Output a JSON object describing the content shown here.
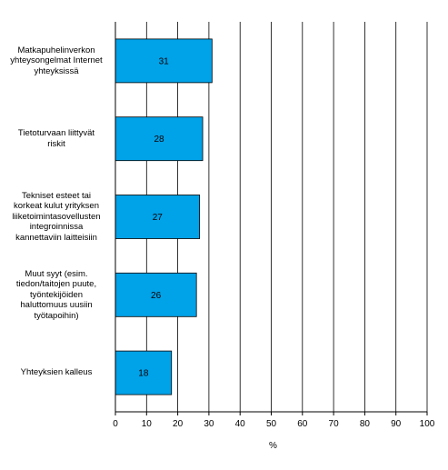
{
  "chart_data": {
    "type": "bar",
    "orientation": "horizontal",
    "categories": [
      "Matkapuhelinverkon yhteysongelmat Internet yhteyksissä",
      "Tietoturvaan liittyvät riskit",
      "Tekniset esteet tai korkeat kulut yrityksen liiketoimintasovellusten integroinnissa kannettaviin laitteisiin",
      "Muut syyt (esim. tiedon/taitojen puute, työntekijöiden haluttomuus uusiin työtapoihin)",
      "Yhteyksien kalleus"
    ],
    "category_lines": [
      [
        "Matkapuhelinverkon",
        "yhteysongelmat Internet",
        "yhteyksissä"
      ],
      [
        "Tietoturvaan liittyvät",
        "riskit"
      ],
      [
        "Tekniset esteet tai",
        "korkeat kulut yrityksen",
        "liiketoimintasovellusten",
        "integroinnissa",
        "kannettaviin laitteisiin"
      ],
      [
        "Muut syyt (esim.",
        "tiedon/taitojen puute,",
        "työntekijöiden",
        "haluttomuus uusiin",
        "työtapoihin)"
      ],
      [
        "Yhteyksien kalleus"
      ]
    ],
    "values": [
      31,
      28,
      27,
      26,
      18
    ],
    "data_labels": [
      "31",
      "28",
      "27",
      "26",
      "18"
    ],
    "xlim": [
      0,
      100
    ],
    "xticks": [
      0,
      10,
      20,
      30,
      40,
      50,
      60,
      70,
      80,
      90,
      100
    ],
    "xlabel": "%",
    "grid": "vertical",
    "bar_color": "#00a2e8",
    "bar_edge_color": "#000000",
    "legend": "none"
  }
}
